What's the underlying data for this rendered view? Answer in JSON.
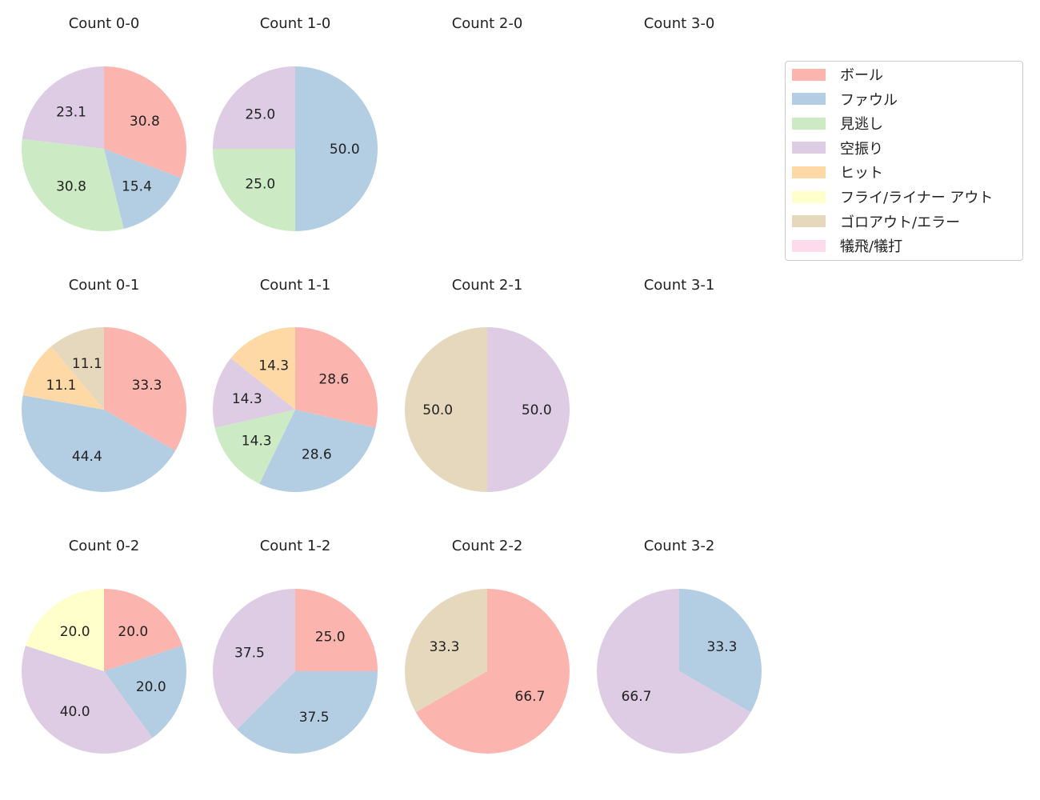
{
  "chart_data": {
    "type": "pie",
    "categories": [
      "ボール",
      "ファウル",
      "見逃し",
      "空振り",
      "ヒット",
      "フライ/ライナー アウト",
      "ゴロアウト/エラー",
      "犠飛/犠打"
    ],
    "colors": [
      "#fbb4ae",
      "#b3cde3",
      "#ccebc5",
      "#decbe4",
      "#fed9a6",
      "#ffffcc",
      "#e5d8bd",
      "#fddaec"
    ],
    "legend_position": "right",
    "start_angle": 90,
    "direction": "clockwise",
    "pies": [
      {
        "title": "Count 0-0",
        "values": [
          30.8,
          15.4,
          30.8,
          23.1,
          0,
          0,
          0,
          0
        ]
      },
      {
        "title": "Count 1-0",
        "values": [
          0,
          50.0,
          25.0,
          25.0,
          0,
          0,
          0,
          0
        ]
      },
      {
        "title": "Count 2-0",
        "values": []
      },
      {
        "title": "Count 3-0",
        "values": []
      },
      {
        "title": "Count 0-1",
        "values": [
          33.3,
          44.4,
          0,
          0,
          11.1,
          0,
          11.1,
          0
        ]
      },
      {
        "title": "Count 1-1",
        "values": [
          28.6,
          28.6,
          14.3,
          14.3,
          14.3,
          0,
          0,
          0
        ]
      },
      {
        "title": "Count 2-1",
        "values": [
          0,
          0,
          0,
          50.0,
          0,
          0,
          50.0,
          0
        ]
      },
      {
        "title": "Count 3-1",
        "values": []
      },
      {
        "title": "Count 0-2",
        "values": [
          20.0,
          20.0,
          0,
          40.0,
          0,
          20.0,
          0,
          0
        ]
      },
      {
        "title": "Count 1-2",
        "values": [
          25.0,
          37.5,
          0,
          37.5,
          0,
          0,
          0,
          0
        ]
      },
      {
        "title": "Count 2-2",
        "values": [
          66.7,
          0,
          0,
          0,
          0,
          0,
          33.3,
          0
        ]
      },
      {
        "title": "Count 3-2",
        "values": [
          0,
          33.3,
          0,
          66.7,
          0,
          0,
          0,
          0
        ]
      }
    ]
  }
}
